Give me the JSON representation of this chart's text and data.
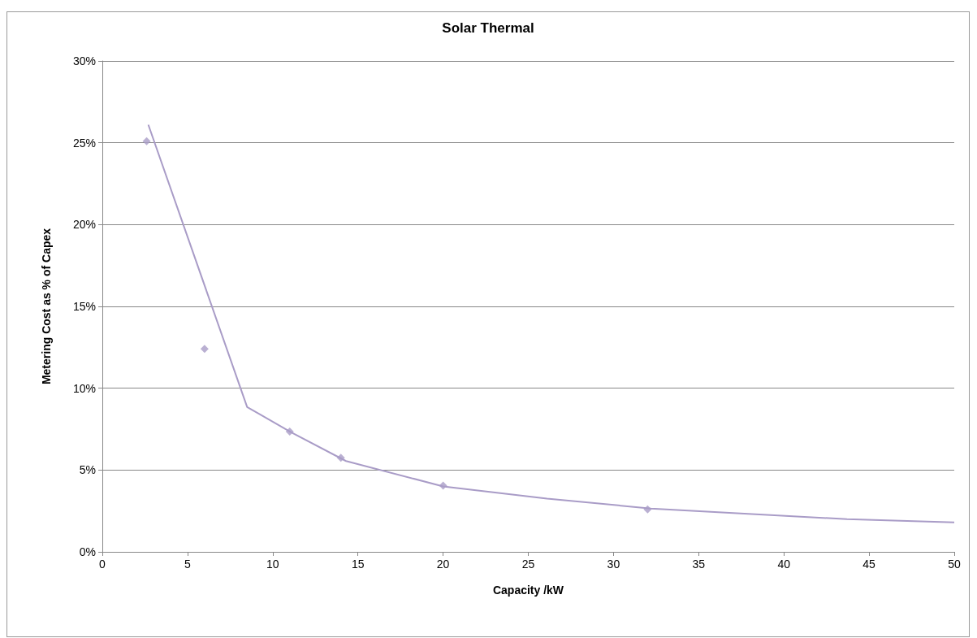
{
  "chart_data": {
    "type": "scatter",
    "title": "Solar Thermal",
    "xlabel": "Capacity /kW",
    "ylabel": "Metering Cost as % of Capex",
    "series": [
      {
        "color": "#a99cc7",
        "marker": "diamond",
        "x": [
          2.6,
          6,
          11,
          14,
          20,
          32
        ],
        "values": [
          25.1,
          12.4,
          7.35,
          5.75,
          4.05,
          2.6
        ]
      },
      {
        "type": "line",
        "color": "#a99cc7",
        "marker": "none",
        "x": [
          2.7,
          8.5,
          11.1,
          14.3,
          20,
          26.1,
          32.2,
          43.7,
          50
        ],
        "values": [
          26.1,
          8.85,
          7.3,
          5.55,
          4.0,
          3.25,
          2.65,
          2.0,
          1.8
        ]
      }
    ],
    "xlim": [
      0,
      50
    ],
    "xticks": [
      0,
      5,
      10,
      15,
      20,
      25,
      30,
      35,
      40,
      45,
      50
    ],
    "ylim": [
      0,
      30
    ],
    "yticks": [
      {
        "value": 0,
        "label": "0%"
      },
      {
        "value": 5,
        "label": "5%"
      },
      {
        "value": 10,
        "label": "10%"
      },
      {
        "value": 15,
        "label": "15%"
      },
      {
        "value": 20,
        "label": "20%"
      },
      {
        "value": 25,
        "label": "25%"
      },
      {
        "value": 30,
        "label": "30%"
      }
    ],
    "grid": "y"
  }
}
